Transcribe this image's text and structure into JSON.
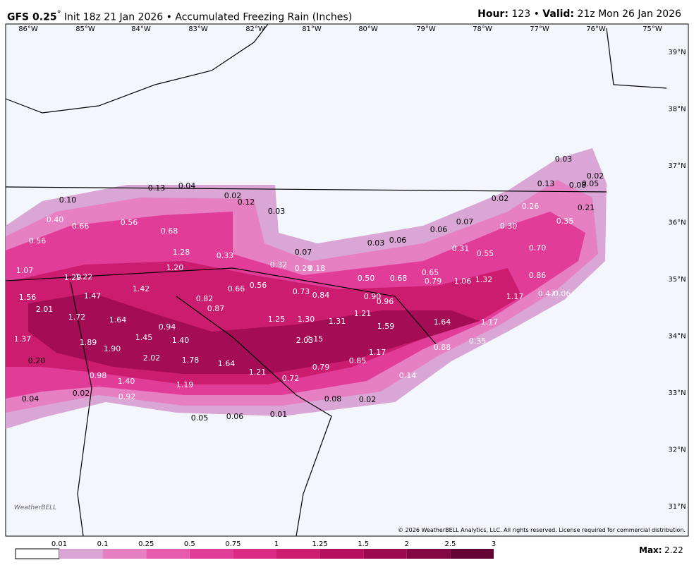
{
  "header": {
    "model": "GFS 0.25",
    "degree": "°",
    "title": "Init 18z 21 Jan 2026 • Accumulated Freezing Rain (Inches)",
    "hour_label": "Hour:",
    "hour": "123",
    "sep": "•",
    "valid_label": "Valid:",
    "valid": "21z Mon 26 Jan 2026"
  },
  "longitudes": [
    "86°W",
    "85°W",
    "84°W",
    "83°W",
    "82°W",
    "81°W",
    "80°W",
    "79°W",
    "78°W",
    "77°W",
    "76°W",
    "75°W"
  ],
  "latitudes": [
    "39°N",
    "38°N",
    "37°N",
    "36°N",
    "35°N",
    "34°N",
    "33°N",
    "32°N",
    "31°N"
  ],
  "map_labels": [
    "0.13",
    "0.04",
    "0.02",
    "0.12",
    "0.03",
    "0.10",
    "0.40",
    "0.66",
    "0.56",
    "0.68",
    "0.56",
    "1.28",
    "0.33",
    "1.07",
    "1.20",
    "1.29",
    "1.22",
    "0.32",
    "0.07",
    "0.29",
    "0.18",
    "0.03",
    "0.06",
    "0.06",
    "0.07",
    "0.02",
    "0.13",
    "0.26",
    "0.30",
    "0.31",
    "0.55",
    "0.70",
    "0.35",
    "0.21",
    "0.08",
    "0.05",
    "0.02",
    "0.03",
    "0.65",
    "0.79",
    "1.06",
    "1.32",
    "0.86",
    "0.68",
    "0.50",
    "1.42",
    "1.56",
    "1.47",
    "2.01",
    "0.82",
    "0.87",
    "0.66",
    "0.56",
    "0.73",
    "0.84",
    "0.90",
    "0.96",
    "1.21",
    "1.17",
    "0.47",
    "0.06",
    "1.72",
    "1.64",
    "1.25",
    "1.30",
    "1.31",
    "1.59",
    "1.64",
    "1.17",
    "0.94",
    "1.45",
    "1.40",
    "1.37",
    "1.89",
    "1.90",
    "2.03",
    "2.15",
    "1.17",
    "0.88",
    "0.35",
    "2.02",
    "1.78",
    "1.64",
    "0.79",
    "0.85",
    "1.21",
    "0.72",
    "0.14",
    "0.20",
    "0.98",
    "1.40",
    "1.19",
    "0.92",
    "0.02",
    "0.04",
    "0.08",
    "0.02",
    "0.01",
    "0.05",
    "0.06"
  ],
  "logo": "WeatherBELL",
  "copyright": "© 2026 WeatherBELL Analytics, LLC. All rights reserved. License required for commercial distribution.",
  "colorbar": {
    "labels": [
      "0.01",
      "0.1",
      "0.25",
      "0.5",
      "0.75",
      "1",
      "1.25",
      "1.5",
      "2",
      "2.5",
      "3"
    ],
    "colors": [
      "#d9a6d5",
      "#e77fc3",
      "#e85cad",
      "#e23c99",
      "#dc2b85",
      "#cc1c70",
      "#b81060",
      "#9c0a50",
      "#820743",
      "#650535"
    ]
  },
  "max_label": "Max:",
  "max_value": "2.22"
}
